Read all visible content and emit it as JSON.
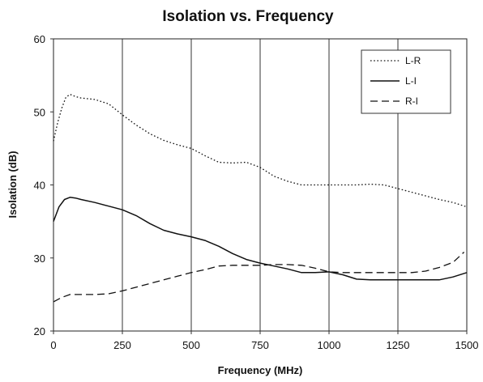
{
  "chart_data": {
    "type": "line",
    "title": "Isolation vs. Frequency",
    "xlabel": "Frequency (MHz)",
    "ylabel": "Isolation (dB)",
    "xlim": [
      0,
      1500
    ],
    "ylim": [
      20,
      60
    ],
    "x_ticks": [
      0,
      250,
      500,
      750,
      1000,
      1250,
      1500
    ],
    "y_ticks": [
      20,
      30,
      40,
      50,
      60
    ],
    "grid": {
      "vertical": true,
      "horizontal": false
    },
    "legend_position": "top-right",
    "colors": {
      "lines": "#111111",
      "grid": "#333333",
      "frame": "#222222"
    },
    "series": [
      {
        "name": "L-R",
        "style": "dotted",
        "points": [
          [
            0,
            46
          ],
          [
            15,
            48.5
          ],
          [
            30,
            50.5
          ],
          [
            45,
            52
          ],
          [
            60,
            52.4
          ],
          [
            80,
            52.1
          ],
          [
            100,
            51.9
          ],
          [
            150,
            51.7
          ],
          [
            200,
            51.1
          ],
          [
            250,
            49.6
          ],
          [
            300,
            48.2
          ],
          [
            350,
            47
          ],
          [
            400,
            46.1
          ],
          [
            450,
            45.5
          ],
          [
            500,
            45
          ],
          [
            550,
            44
          ],
          [
            600,
            43.1
          ],
          [
            650,
            43
          ],
          [
            700,
            43.1
          ],
          [
            750,
            42.4
          ],
          [
            800,
            41.2
          ],
          [
            850,
            40.5
          ],
          [
            900,
            40
          ],
          [
            950,
            40
          ],
          [
            1000,
            40
          ],
          [
            1050,
            40
          ],
          [
            1100,
            40
          ],
          [
            1150,
            40.1
          ],
          [
            1200,
            40
          ],
          [
            1250,
            39.5
          ],
          [
            1300,
            39
          ],
          [
            1350,
            38.5
          ],
          [
            1400,
            38
          ],
          [
            1450,
            37.6
          ],
          [
            1500,
            37
          ]
        ]
      },
      {
        "name": "L-I",
        "style": "solid",
        "points": [
          [
            0,
            35
          ],
          [
            20,
            37
          ],
          [
            40,
            38
          ],
          [
            60,
            38.3
          ],
          [
            80,
            38.2
          ],
          [
            100,
            38
          ],
          [
            150,
            37.6
          ],
          [
            200,
            37.1
          ],
          [
            250,
            36.6
          ],
          [
            300,
            35.8
          ],
          [
            350,
            34.7
          ],
          [
            400,
            33.8
          ],
          [
            450,
            33.3
          ],
          [
            500,
            32.9
          ],
          [
            550,
            32.4
          ],
          [
            600,
            31.6
          ],
          [
            650,
            30.6
          ],
          [
            700,
            29.8
          ],
          [
            750,
            29.3
          ],
          [
            800,
            28.9
          ],
          [
            850,
            28.5
          ],
          [
            900,
            28
          ],
          [
            950,
            28
          ],
          [
            1000,
            28.1
          ],
          [
            1050,
            27.7
          ],
          [
            1100,
            27.1
          ],
          [
            1150,
            27
          ],
          [
            1200,
            27
          ],
          [
            1250,
            27
          ],
          [
            1300,
            27
          ],
          [
            1350,
            27
          ],
          [
            1400,
            27
          ],
          [
            1450,
            27.4
          ],
          [
            1500,
            28
          ]
        ]
      },
      {
        "name": "R-I",
        "style": "dashed",
        "points": [
          [
            0,
            24
          ],
          [
            30,
            24.6
          ],
          [
            60,
            25
          ],
          [
            100,
            25
          ],
          [
            150,
            25
          ],
          [
            200,
            25.1
          ],
          [
            250,
            25.5
          ],
          [
            300,
            26
          ],
          [
            350,
            26.5
          ],
          [
            400,
            27
          ],
          [
            450,
            27.5
          ],
          [
            500,
            28
          ],
          [
            550,
            28.4
          ],
          [
            600,
            28.9
          ],
          [
            650,
            29
          ],
          [
            700,
            29
          ],
          [
            750,
            29
          ],
          [
            800,
            29.1
          ],
          [
            850,
            29.1
          ],
          [
            900,
            29
          ],
          [
            950,
            28.6
          ],
          [
            1000,
            28.1
          ],
          [
            1050,
            28
          ],
          [
            1100,
            28
          ],
          [
            1150,
            28
          ],
          [
            1200,
            28
          ],
          [
            1250,
            28
          ],
          [
            1300,
            28
          ],
          [
            1350,
            28.2
          ],
          [
            1400,
            28.7
          ],
          [
            1450,
            29.4
          ],
          [
            1490,
            30.8
          ]
        ]
      }
    ]
  }
}
